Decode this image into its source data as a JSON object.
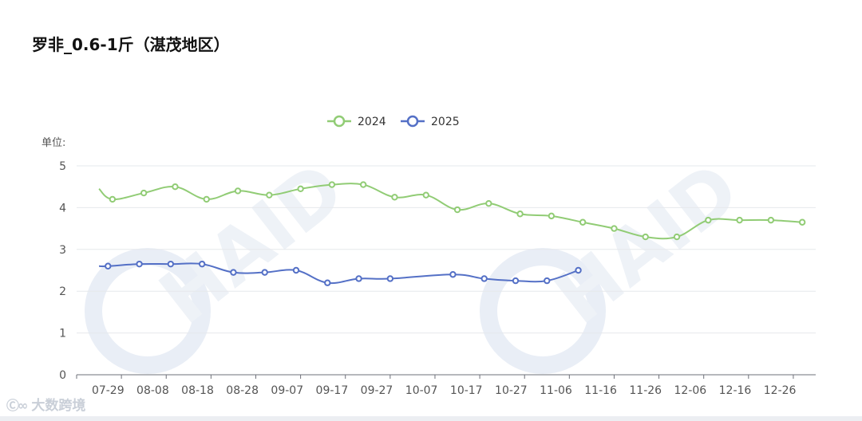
{
  "title": "罗非_0.6-1斤（湛茂地区）",
  "footer": {
    "brand": "大数跨境"
  },
  "chart_data": {
    "type": "line",
    "unit_label": "单位:",
    "ylim": [
      0,
      5
    ],
    "yticks": [
      0,
      1,
      2,
      3,
      4,
      5
    ],
    "xticks": [
      "07-29",
      "08-08",
      "08-18",
      "08-28",
      "09-07",
      "09-17",
      "09-27",
      "10-07",
      "10-17",
      "10-27",
      "11-06",
      "11-16",
      "11-26",
      "12-06",
      "12-16",
      "12-26"
    ],
    "legend_position": "top-center",
    "watermark": "HAID",
    "series": [
      {
        "name": "2024",
        "color": "#91cc75",
        "points": [
          [
            "07-27",
            4.45
          ],
          [
            "07-30",
            4.2
          ],
          [
            "08-06",
            4.35
          ],
          [
            "08-13",
            4.5
          ],
          [
            "08-20",
            4.2
          ],
          [
            "08-27",
            4.4
          ],
          [
            "09-03",
            4.3
          ],
          [
            "09-10",
            4.45
          ],
          [
            "09-17",
            4.55
          ],
          [
            "09-24",
            4.55
          ],
          [
            "10-01",
            4.25
          ],
          [
            "10-08",
            4.3
          ],
          [
            "10-15",
            3.95
          ],
          [
            "10-22",
            4.1
          ],
          [
            "10-29",
            3.85
          ],
          [
            "11-05",
            3.8
          ],
          [
            "11-12",
            3.65
          ],
          [
            "11-19",
            3.5
          ],
          [
            "11-26",
            3.3
          ],
          [
            "12-03",
            3.3
          ],
          [
            "12-10",
            3.7
          ],
          [
            "12-17",
            3.7
          ],
          [
            "12-24",
            3.7
          ],
          [
            "12-31",
            3.65
          ]
        ]
      },
      {
        "name": "2025",
        "color": "#5470c6",
        "points": [
          [
            "07-27",
            2.6
          ],
          [
            "07-29",
            2.6
          ],
          [
            "08-05",
            2.65
          ],
          [
            "08-12",
            2.65
          ],
          [
            "08-19",
            2.65
          ],
          [
            "08-26",
            2.45
          ],
          [
            "09-02",
            2.45
          ],
          [
            "09-09",
            2.5
          ],
          [
            "09-16",
            2.2
          ],
          [
            "09-23",
            2.3
          ],
          [
            "09-30",
            2.3
          ],
          [
            "10-14",
            2.4
          ],
          [
            "10-21",
            2.3
          ],
          [
            "10-28",
            2.25
          ],
          [
            "11-04",
            2.25
          ],
          [
            "11-11",
            2.5
          ]
        ]
      }
    ]
  }
}
